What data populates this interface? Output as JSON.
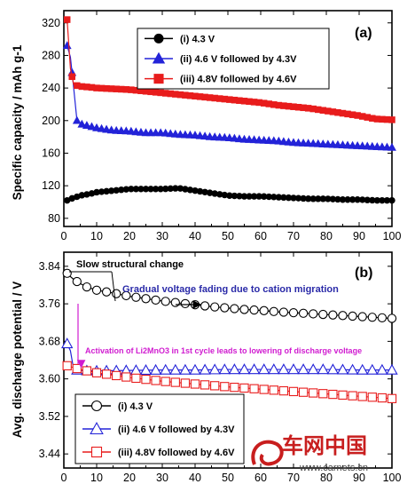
{
  "colors": {
    "black": "#000000",
    "blue": "#2323d8",
    "red": "#e81c1c",
    "magenta": "#d01cd0",
    "annotation_blue": "#2a2aa8",
    "watermark": "#c81e1e"
  },
  "chart_data": [
    {
      "type": "line",
      "panel_label": "(a)",
      "ylabel": "Specific capacity / mAh g-1",
      "xlabel": "",
      "xlim": [
        0,
        100
      ],
      "ylim": [
        70,
        335
      ],
      "xticks": [
        0,
        10,
        20,
        30,
        40,
        50,
        60,
        70,
        80,
        90,
        100
      ],
      "yticks": [
        80,
        120,
        160,
        200,
        240,
        280,
        320
      ],
      "legend": {
        "position": "top-center"
      },
      "series": [
        {
          "name": "(i) 4.3 V",
          "marker": "filled-circle",
          "color": "#000000",
          "x": [
            1,
            2,
            3,
            5,
            8,
            10,
            15,
            20,
            25,
            30,
            35,
            40,
            45,
            50,
            55,
            60,
            65,
            70,
            75,
            80,
            85,
            90,
            95,
            100
          ],
          "y": [
            102,
            104,
            105,
            108,
            110,
            112,
            114,
            116,
            116,
            116,
            117,
            114,
            111,
            108,
            107,
            107,
            106,
            105,
            104,
            104,
            103,
            103,
            102,
            102
          ]
        },
        {
          "name": "(ii) 4.6 V followed by 4.3V",
          "marker": "filled-triangle",
          "color": "#2323d8",
          "x": [
            1,
            2,
            3,
            4,
            5,
            8,
            10,
            15,
            20,
            25,
            30,
            35,
            40,
            45,
            50,
            55,
            60,
            65,
            70,
            75,
            80,
            85,
            90,
            95,
            100
          ],
          "y": [
            292,
            278,
            240,
            200,
            196,
            193,
            191,
            188,
            187,
            185,
            185,
            183,
            182,
            180,
            179,
            177,
            176,
            175,
            173,
            172,
            171,
            170,
            169,
            168,
            167
          ]
        },
        {
          "name": "(iii) 4.8V followed by 4.6V",
          "marker": "filled-square",
          "color": "#e81c1c",
          "x": [
            1,
            2,
            3,
            5,
            8,
            10,
            15,
            20,
            25,
            30,
            35,
            40,
            45,
            50,
            55,
            60,
            65,
            70,
            75,
            80,
            85,
            90,
            95,
            100
          ],
          "y": [
            324,
            264,
            244,
            242,
            241,
            240,
            239,
            238,
            236,
            234,
            232,
            230,
            228,
            226,
            224,
            222,
            219,
            217,
            215,
            212,
            209,
            206,
            202,
            201
          ]
        }
      ],
      "annotations": []
    },
    {
      "type": "line",
      "panel_label": "(b)",
      "ylabel": "Avg. discharge potential / V",
      "xlabel": "",
      "xlim": [
        0,
        100
      ],
      "ylim": [
        3.41,
        3.87
      ],
      "xticks": [
        0,
        10,
        20,
        30,
        40,
        50,
        60,
        70,
        80,
        90,
        100
      ],
      "yticks": [
        3.44,
        3.52,
        3.6,
        3.68,
        3.76,
        3.84
      ],
      "legend": {
        "position": "bottom-left"
      },
      "series": [
        {
          "name": "(i) 4.3 V",
          "marker": "open-circle",
          "color": "#000000",
          "x": [
            1,
            2,
            3,
            5,
            7,
            10,
            15,
            20,
            25,
            30,
            35,
            40,
            45,
            50,
            55,
            60,
            65,
            70,
            75,
            80,
            85,
            90,
            95,
            100
          ],
          "y": [
            3.825,
            3.818,
            3.812,
            3.803,
            3.796,
            3.789,
            3.783,
            3.776,
            3.771,
            3.766,
            3.762,
            3.758,
            3.754,
            3.751,
            3.748,
            3.746,
            3.743,
            3.741,
            3.739,
            3.737,
            3.735,
            3.733,
            3.731,
            3.729
          ]
        },
        {
          "name": "(ii) 4.6 V followed by 4.3V",
          "marker": "open-triangle",
          "color": "#2323d8",
          "x": [
            1,
            2,
            3,
            5,
            10,
            20,
            30,
            40,
            50,
            60,
            70,
            80,
            90,
            100
          ],
          "y": [
            3.675,
            3.66,
            3.62,
            3.618,
            3.617,
            3.618,
            3.619,
            3.619,
            3.62,
            3.62,
            3.62,
            3.62,
            3.619,
            3.619
          ]
        },
        {
          "name": "(iii) 4.8V followed by 4.6V",
          "marker": "open-square",
          "color": "#e81c1c",
          "x": [
            1,
            2,
            3,
            5,
            10,
            15,
            20,
            30,
            40,
            50,
            60,
            70,
            80,
            90,
            100
          ],
          "y": [
            3.628,
            3.626,
            3.624,
            3.62,
            3.613,
            3.608,
            3.603,
            3.595,
            3.589,
            3.583,
            3.578,
            3.573,
            3.568,
            3.563,
            3.558
          ]
        }
      ],
      "annotations": [
        {
          "text": "Slow structural change",
          "color": "#000000"
        },
        {
          "text": "Gradual voltage fading due to cation migration",
          "color": "#2a2aa8"
        },
        {
          "text": "Activation of Li2MnO3 in 1st cycle leads to lowering of discharge voltage",
          "color": "#d01cd0"
        }
      ]
    }
  ],
  "watermark": {
    "text": "车网中国",
    "url": "www.carnets.cn"
  }
}
